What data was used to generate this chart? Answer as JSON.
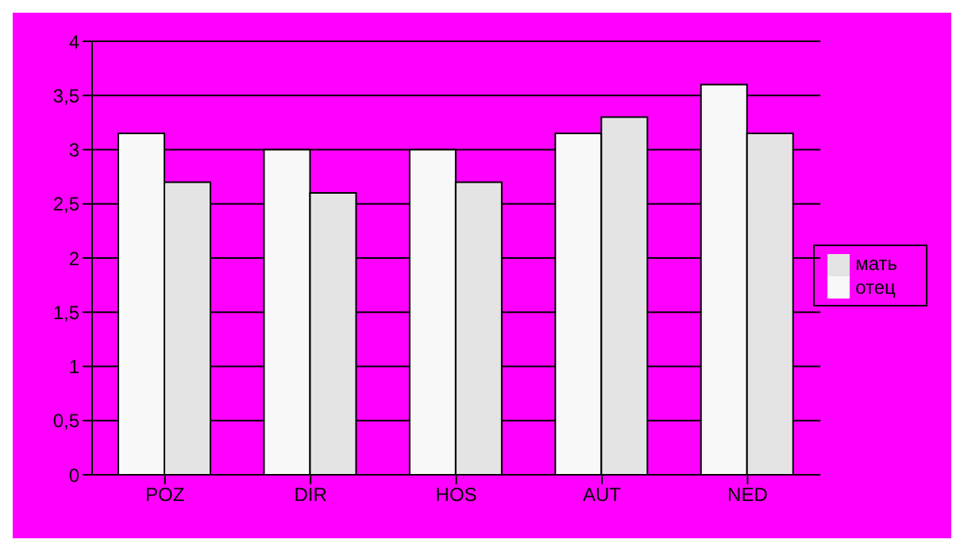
{
  "chart_data": {
    "type": "bar",
    "categories": [
      "POZ",
      "DIR",
      "HOS",
      "AUT",
      "NED"
    ],
    "series": [
      {
        "name": "отец",
        "color": "#f8f8f8",
        "values": [
          3.15,
          3.0,
          3.0,
          3.15,
          3.6
        ]
      },
      {
        "name": "мать",
        "color": "#e4e4e4",
        "values": [
          2.7,
          2.6,
          2.7,
          3.3,
          3.15
        ]
      }
    ],
    "ylim": [
      0,
      4
    ],
    "yticks": [
      0,
      {
        "value": 0.5,
        "label": "0,5"
      },
      1,
      {
        "value": 1.5,
        "label": "1,5"
      },
      2,
      {
        "value": 2.5,
        "label": "2,5"
      },
      3,
      {
        "value": 3.5,
        "label": "3,5"
      },
      4
    ],
    "grid": "y",
    "legend": "right"
  }
}
